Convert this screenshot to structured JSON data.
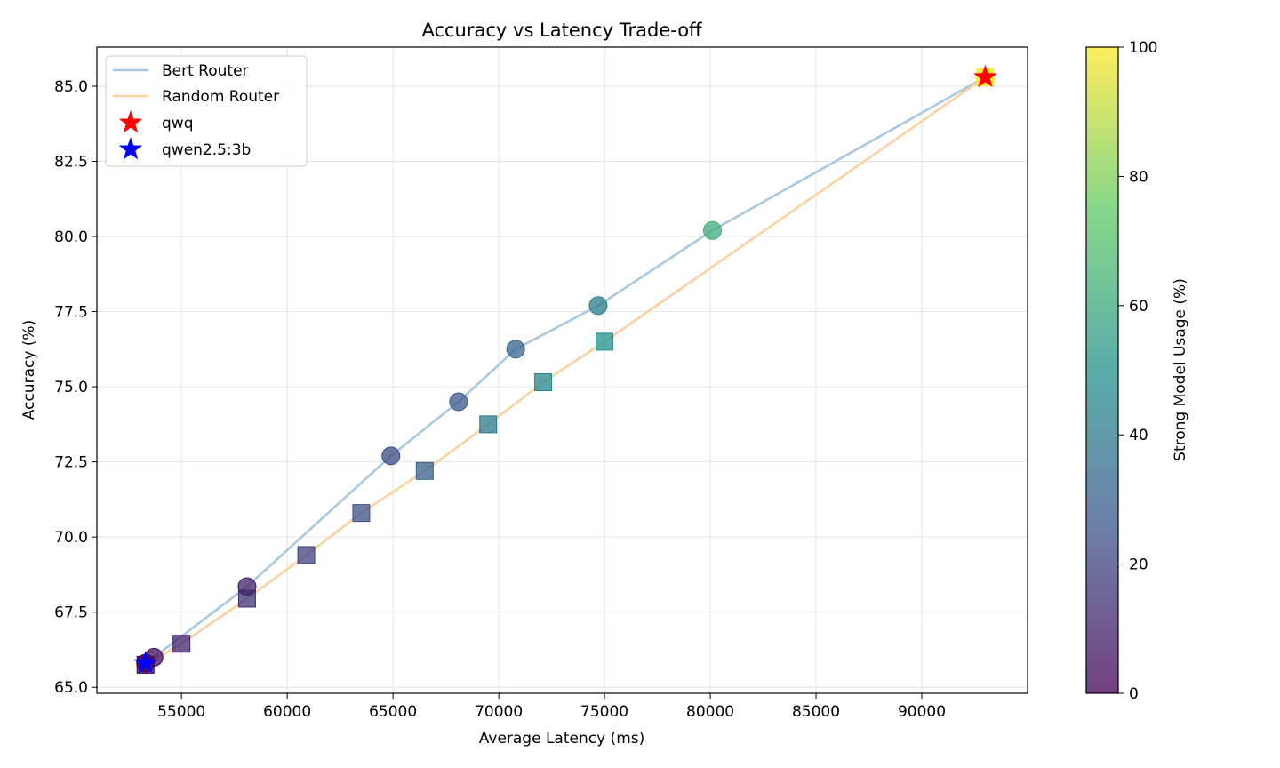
{
  "chart_data": {
    "type": "scatter",
    "title": "Accuracy vs Latency Trade-off",
    "xlabel": "Average Latency (ms)",
    "ylabel": "Accuracy (%)",
    "xlim": [
      51000,
      95000
    ],
    "ylim": [
      64.8,
      86.3
    ],
    "xticks": [
      55000,
      60000,
      65000,
      70000,
      75000,
      80000,
      85000,
      90000
    ],
    "yticks": [
      65.0,
      67.5,
      70.0,
      72.5,
      75.0,
      77.5,
      80.0,
      82.5,
      85.0
    ],
    "ytick_labels": [
      "65.0",
      "67.5",
      "70.0",
      "72.5",
      "75.0",
      "77.5",
      "80.0",
      "82.5",
      "85.0"
    ],
    "grid": true,
    "legend_position": "top-left",
    "colormap": "viridis",
    "colorbar": {
      "label": "Strong Model Usage (%)",
      "range": [
        0,
        100
      ],
      "ticks": [
        0,
        20,
        40,
        60,
        80,
        100
      ]
    },
    "series": [
      {
        "name": "Bert Router",
        "marker": "circle",
        "line_color": "#a6c8e0",
        "points": [
          {
            "x": 53300,
            "y": 65.8,
            "usage": 0
          },
          {
            "x": 53700,
            "y": 66.0,
            "usage": 3
          },
          {
            "x": 58100,
            "y": 68.35,
            "usage": 10
          },
          {
            "x": 64900,
            "y": 72.7,
            "usage": 22
          },
          {
            "x": 68100,
            "y": 74.5,
            "usage": 27
          },
          {
            "x": 70800,
            "y": 76.25,
            "usage": 32
          },
          {
            "x": 74700,
            "y": 77.7,
            "usage": 42
          },
          {
            "x": 80100,
            "y": 80.2,
            "usage": 62
          },
          {
            "x": 93000,
            "y": 85.3,
            "usage": 100
          }
        ]
      },
      {
        "name": "Random Router",
        "marker": "square",
        "line_color": "#fdd0a2",
        "points": [
          {
            "x": 53300,
            "y": 65.75,
            "usage": 0
          },
          {
            "x": 55000,
            "y": 66.45,
            "usage": 10
          },
          {
            "x": 58100,
            "y": 67.95,
            "usage": 15
          },
          {
            "x": 60900,
            "y": 69.4,
            "usage": 20
          },
          {
            "x": 63500,
            "y": 70.8,
            "usage": 25
          },
          {
            "x": 66500,
            "y": 72.2,
            "usage": 30
          },
          {
            "x": 69500,
            "y": 73.75,
            "usage": 40
          },
          {
            "x": 72100,
            "y": 75.15,
            "usage": 45
          },
          {
            "x": 75000,
            "y": 76.5,
            "usage": 50
          },
          {
            "x": 93000,
            "y": 85.3,
            "usage": 100
          }
        ]
      },
      {
        "name": "qwq",
        "marker": "star",
        "color": "#ff0000",
        "points": [
          {
            "x": 93000,
            "y": 85.3
          }
        ]
      },
      {
        "name": "qwen2.5:3b",
        "marker": "star",
        "color": "#0000ff",
        "points": [
          {
            "x": 53300,
            "y": 65.8
          }
        ]
      }
    ]
  }
}
